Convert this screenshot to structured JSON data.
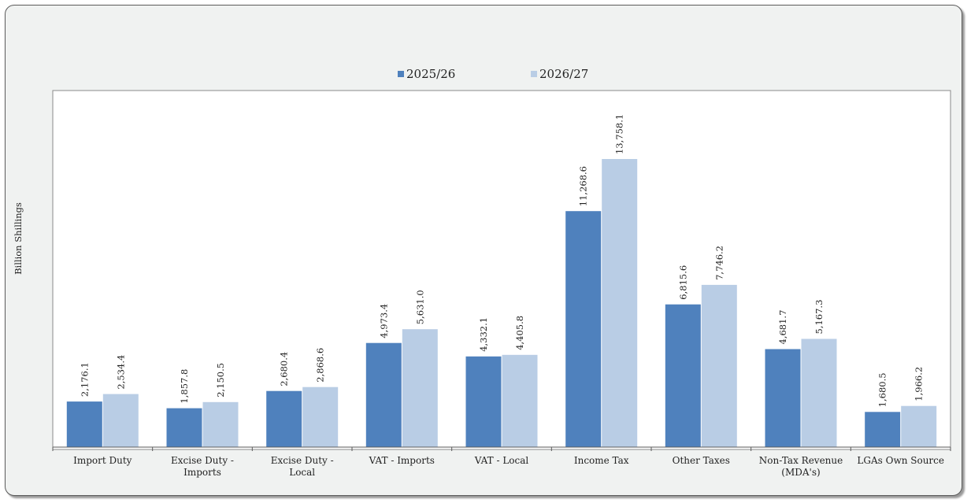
{
  "chart_data": {
    "type": "bar",
    "title": "",
    "xlabel": "",
    "ylabel": "Billion Shillings",
    "ylim": [
      0,
      15500
    ],
    "grid": false,
    "legend_position": "top",
    "categories": [
      [
        "Import Duty"
      ],
      [
        "Excise Duty -",
        "Imports"
      ],
      [
        "Excise Duty -",
        "Local"
      ],
      [
        "VAT - Imports"
      ],
      [
        "VAT - Local"
      ],
      [
        "Income Tax"
      ],
      [
        "Other Taxes"
      ],
      [
        "Non-Tax Revenue",
        "(MDA's)"
      ],
      [
        "LGAs Own Source"
      ]
    ],
    "series": [
      {
        "name": "2025/26",
        "color": "#4f81bd",
        "values": [
          2176.1,
          1857.8,
          2680.4,
          4973.4,
          4332.1,
          11268.6,
          6815.6,
          4681.7,
          1680.5
        ],
        "labels": [
          "2,176.1",
          "1,857.8",
          "2,680.4",
          "4,973.4",
          "4,332.1",
          "11,268.6",
          "6,815.6",
          "4,681.7",
          "1,680.5"
        ]
      },
      {
        "name": "2026/27",
        "color": "#b9cde5",
        "values": [
          2534.4,
          2150.5,
          2868.6,
          5631.0,
          4405.8,
          13758.1,
          7746.2,
          5167.3,
          1966.2
        ],
        "labels": [
          "2,534.4",
          "2,150.5",
          "2,868.6",
          "5,631.0",
          "4,405.8",
          "13,758.1",
          "7,746.2",
          "5,167.3",
          "1,966.2"
        ]
      }
    ]
  }
}
